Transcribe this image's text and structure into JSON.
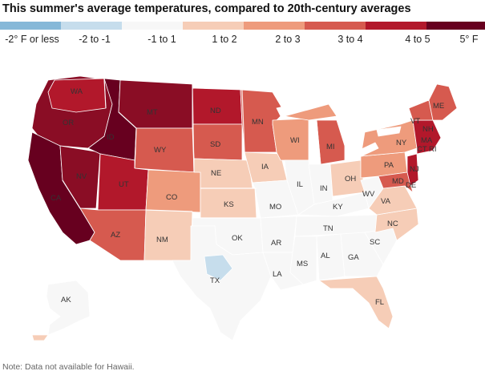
{
  "title": "This summer's average temperatures, compared to 20th-century averages",
  "legend": [
    {
      "label": "-2° F or less",
      "color": "#86b8d8"
    },
    {
      "label": "-2 to -1",
      "color": "#c6ddec"
    },
    {
      "label": "-1 to 1",
      "color": "#f7f7f7"
    },
    {
      "label": "1 to 2",
      "color": "#f6cdb7"
    },
    {
      "label": "2 to 3",
      "color": "#ee9b7c"
    },
    {
      "label": "3 to 4",
      "color": "#d65a4f"
    },
    {
      "label": "4 to 5",
      "color": "#b2182b"
    },
    {
      "label": "5° F",
      "color": "#67001f"
    }
  ],
  "note": "Note: Data not available for Hawaii.",
  "states": {
    "WA": "WA",
    "OR": "OR",
    "ID": "ID",
    "MT": "MT",
    "WY": "WY",
    "NV": "NV",
    "CA": "CA",
    "UT": "UT",
    "AZ": "AZ",
    "CO": "CO",
    "NM": "NM",
    "ND": "ND",
    "SD": "SD",
    "NE": "NE",
    "KS": "KS",
    "OK": "OK",
    "TX": "TX",
    "MN": "MN",
    "IA": "IA",
    "MO": "MO",
    "AR": "AR",
    "LA": "LA",
    "WI": "WI",
    "IL": "IL",
    "MI": "MI",
    "IN": "IN",
    "OH": "OH",
    "KY": "KY",
    "TN": "TN",
    "MS": "MS",
    "AL": "AL",
    "GA": "GA",
    "FL": "FL",
    "SC": "SC",
    "NC": "NC",
    "VA": "VA",
    "WV": "WV",
    "PA": "PA",
    "NY": "NY",
    "MD": "MD",
    "DE": "DE",
    "NJ": "NJ",
    "CT": "CT",
    "RI": "RI",
    "MA": "MA",
    "VT": "VT",
    "NH": "NH",
    "ME": "ME",
    "AK": "AK"
  }
}
